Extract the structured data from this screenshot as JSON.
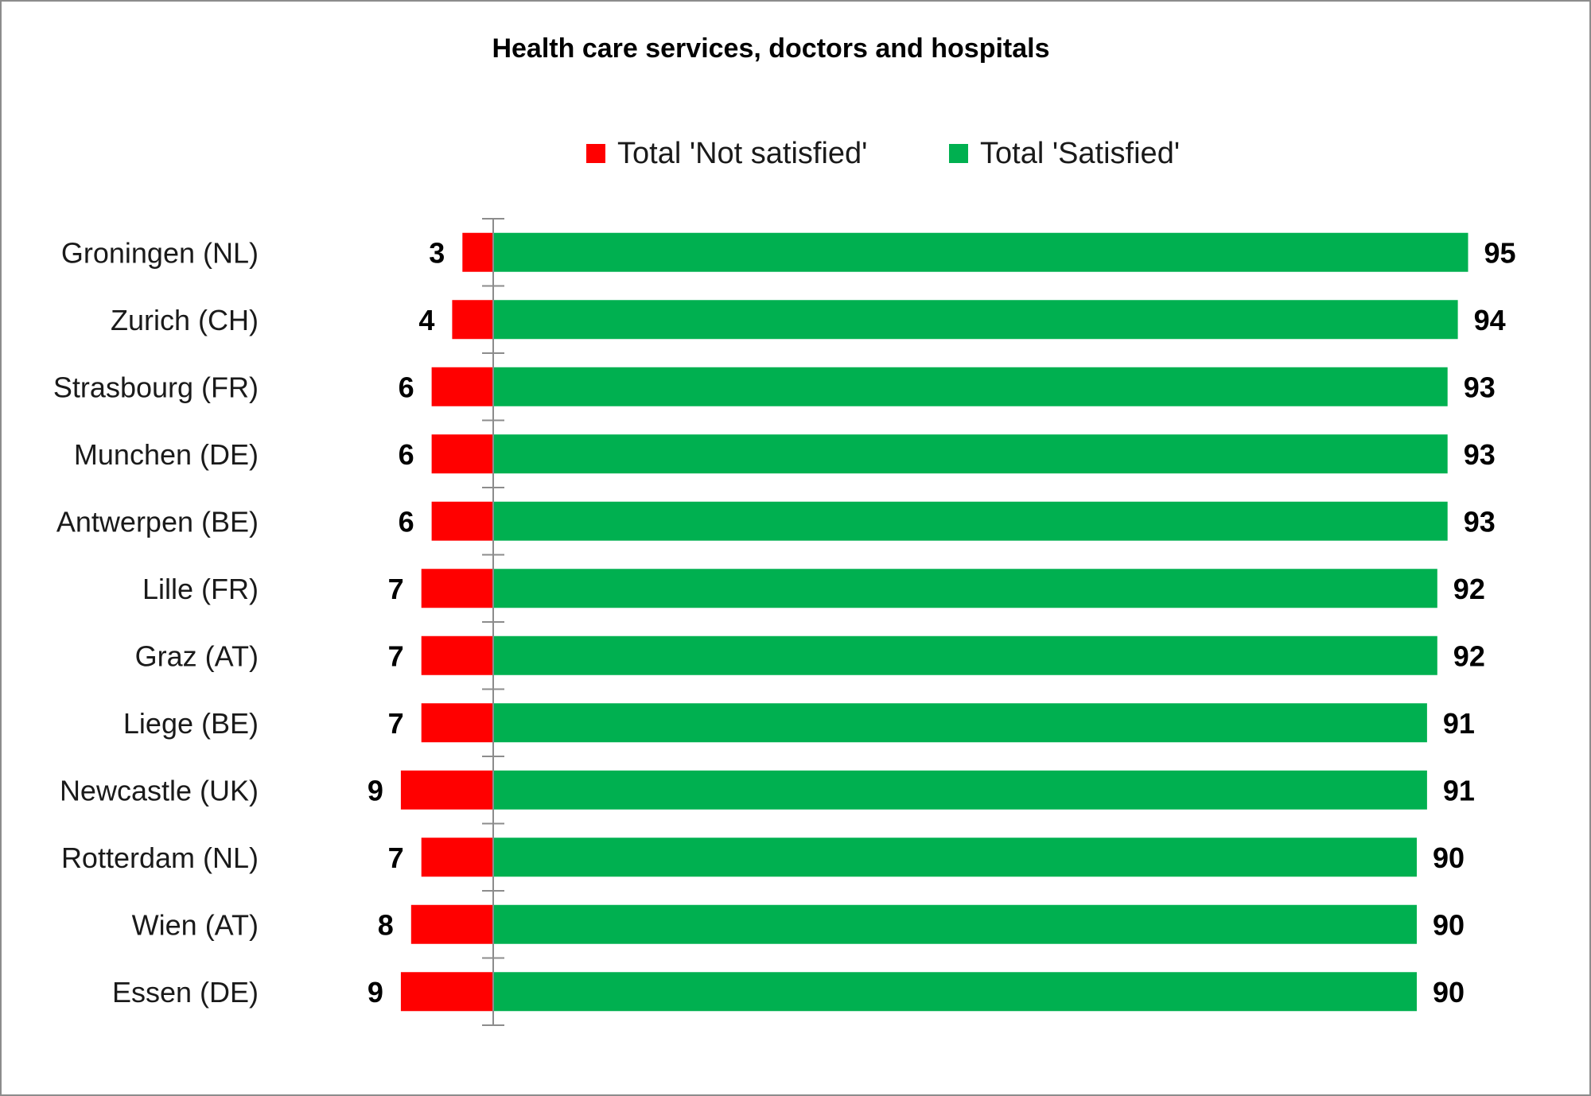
{
  "chart_data": {
    "type": "bar",
    "orientation": "horizontal-diverging",
    "title": "Health care services, doctors and hospitals",
    "categories": [
      "Groningen (NL)",
      "Zurich (CH)",
      "Strasbourg (FR)",
      "Munchen (DE)",
      "Antwerpen (BE)",
      "Lille (FR)",
      "Graz (AT)",
      "Liege (BE)",
      "Newcastle (UK)",
      "Rotterdam (NL)",
      "Wien (AT)",
      "Essen (DE)"
    ],
    "series": [
      {
        "name": "Total 'Not satisfied'",
        "color": "#ff0000",
        "direction": "left",
        "values": [
          3,
          4,
          6,
          6,
          6,
          7,
          7,
          7,
          9,
          7,
          8,
          9
        ]
      },
      {
        "name": "Total 'Satisfied'",
        "color": "#00b050",
        "direction": "right",
        "values": [
          95,
          94,
          93,
          93,
          93,
          92,
          92,
          91,
          91,
          90,
          90,
          90
        ]
      }
    ],
    "legend_position": "top",
    "grid": false
  }
}
